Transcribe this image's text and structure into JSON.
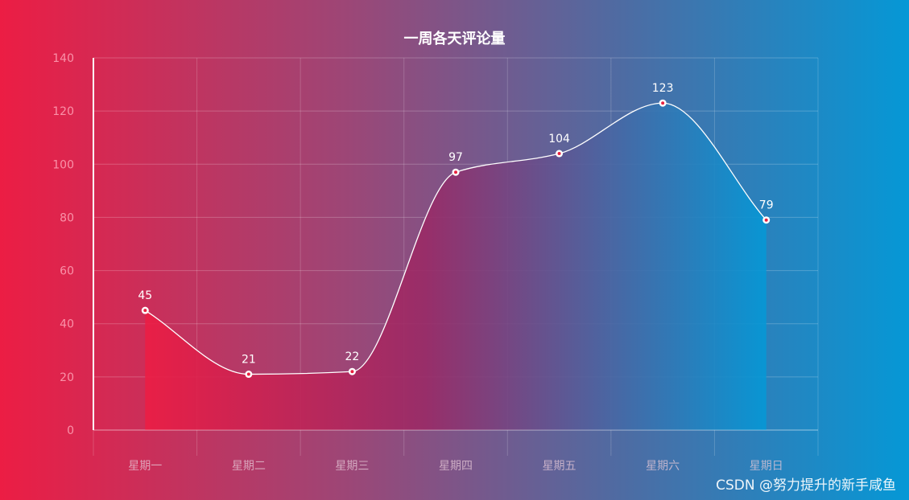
{
  "chart_data": {
    "type": "line",
    "title": "一周各天评论量",
    "categories": [
      "星期一",
      "星期二",
      "星期三",
      "星期四",
      "星期五",
      "星期六",
      "星期日"
    ],
    "values": [
      45,
      21,
      22,
      97,
      104,
      123,
      79
    ],
    "ylim": [
      0,
      140
    ],
    "yticks": [
      0,
      20,
      40,
      60,
      80,
      100,
      120,
      140
    ],
    "grid": true,
    "smooth": true,
    "area_fill": true
  },
  "colors": {
    "gradient_start": "#ec1d44",
    "gradient_end": "#0598d6",
    "line": "#ffffff",
    "point_center": "#e8213f"
  },
  "watermark": "CSDN @努力提升的新手咸鱼"
}
